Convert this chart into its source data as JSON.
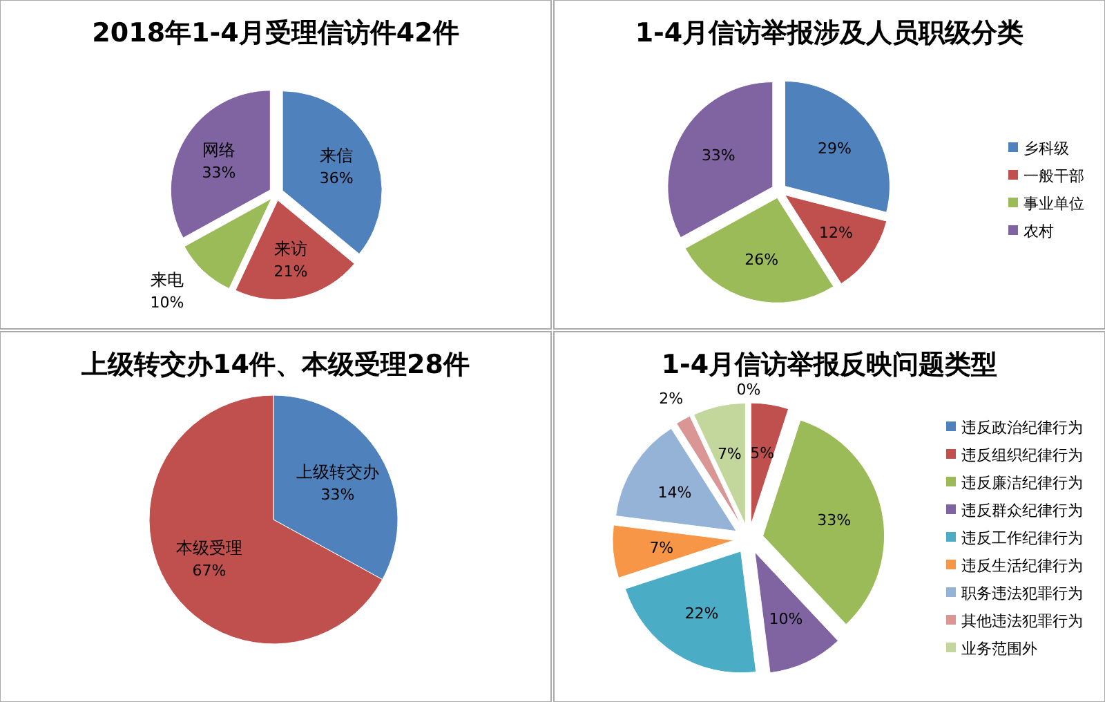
{
  "chart_data": [
    {
      "type": "pie",
      "title": "2018年1-4月受理信访件42件",
      "categories": [
        "来信",
        "来访",
        "来电",
        "网络"
      ],
      "values": [
        36,
        21,
        10,
        33
      ],
      "value_labels": [
        "36%",
        "21%",
        "10%",
        "33%"
      ],
      "colors": [
        "#4f81bd",
        "#c0504d",
        "#9bbb59",
        "#8064a2"
      ]
    },
    {
      "type": "pie",
      "title": "1-4月信访举报涉及人员职级分类",
      "categories": [
        "乡科级",
        "一般干部",
        "事业单位",
        "农村"
      ],
      "values": [
        29,
        12,
        26,
        33
      ],
      "value_labels": [
        "29%",
        "12%",
        "26%",
        "33%"
      ],
      "colors": [
        "#4f81bd",
        "#c0504d",
        "#9bbb59",
        "#8064a2"
      ],
      "legend": "right"
    },
    {
      "type": "pie",
      "title": "上级转交办14件、本级受理28件",
      "categories": [
        "上级转交办",
        "本级受理"
      ],
      "values": [
        33,
        67
      ],
      "value_labels": [
        "33%",
        "67%"
      ],
      "colors": [
        "#4f81bd",
        "#c0504d"
      ]
    },
    {
      "type": "pie",
      "title": "1-4月信访举报反映问题类型",
      "categories": [
        "违反政治纪律行为",
        "违反组织纪律行为",
        "违反廉洁纪律行为",
        "违反群众纪律行为",
        "违反工作纪律行为",
        "违反生活纪律行为",
        "职务违法犯罪行为",
        "其他违法犯罪行为",
        "业务范围外"
      ],
      "values": [
        0,
        5,
        33,
        10,
        22,
        7,
        14,
        2,
        7
      ],
      "value_labels": [
        "0%",
        "5%",
        "33%",
        "10%",
        "22%",
        "7%",
        "14%",
        "2%",
        "7%"
      ],
      "colors": [
        "#4f81bd",
        "#c0504d",
        "#9bbb59",
        "#8064a2",
        "#4bacc6",
        "#f79646",
        "#95b3d7",
        "#d99694",
        "#c3d69b"
      ],
      "legend": "right"
    }
  ]
}
